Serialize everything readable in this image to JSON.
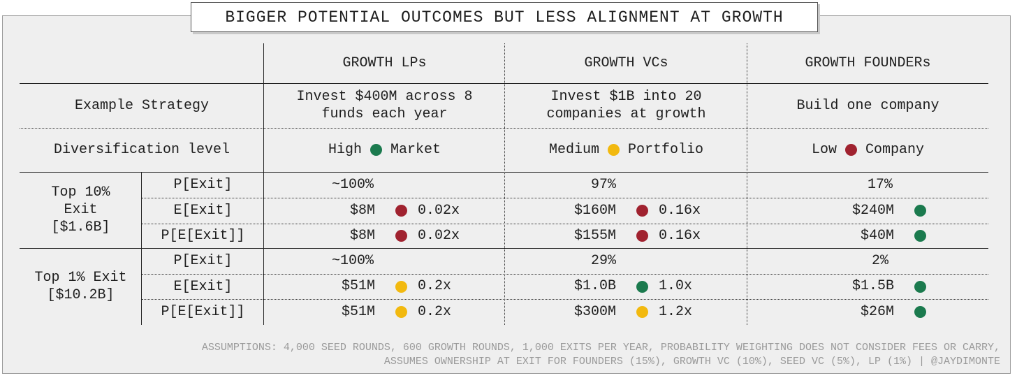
{
  "title": "BIGGER POTENTIAL OUTCOMES BUT LESS ALIGNMENT AT GROWTH",
  "header": [
    "GROWTH LPs",
    "GROWTH VCs",
    "GROWTH FOUNDERs"
  ],
  "strategy": {
    "label": "Example Strategy",
    "cells": [
      "Invest $400M across 8 funds each year",
      "Invest $1B into 20 companies at growth",
      "Build one company"
    ]
  },
  "diversification": {
    "label": "Diversification level",
    "cells": [
      {
        "level": "High",
        "color": "#1b7a4e",
        "scope": "Market"
      },
      {
        "level": "Medium",
        "color": "#f2b90f",
        "scope": "Portfolio"
      },
      {
        "level": "Low",
        "color": "#a0222f",
        "scope": "Company"
      }
    ]
  },
  "groups": [
    {
      "label": "Top 10% Exit [$1.6B]",
      "rows": [
        {
          "metric": "P[Exit]",
          "cells": [
            {
              "value": "~100%"
            },
            {
              "value": "97%"
            },
            {
              "value": "17%"
            }
          ]
        },
        {
          "metric": "E[Exit]",
          "cells": [
            {
              "value": "$8M",
              "color": "#a0222f",
              "multiple": "0.02x"
            },
            {
              "value": "$160M",
              "color": "#a0222f",
              "multiple": "0.16x"
            },
            {
              "value": "$240M",
              "color": "#1b7a4e"
            }
          ]
        },
        {
          "metric": "P[E[Exit]]",
          "cells": [
            {
              "value": "$8M",
              "color": "#a0222f",
              "multiple": "0.02x"
            },
            {
              "value": "$155M",
              "color": "#a0222f",
              "multiple": "0.16x"
            },
            {
              "value": "$40M",
              "color": "#1b7a4e"
            }
          ]
        }
      ]
    },
    {
      "label": "Top 1% Exit [$10.2B]",
      "rows": [
        {
          "metric": "P[Exit]",
          "cells": [
            {
              "value": "~100%"
            },
            {
              "value": "29%"
            },
            {
              "value": "2%"
            }
          ]
        },
        {
          "metric": "E[Exit]",
          "cells": [
            {
              "value": "$51M",
              "color": "#f2b90f",
              "multiple": "0.2x"
            },
            {
              "value": "$1.0B",
              "color": "#1b7a4e",
              "multiple": "1.0x"
            },
            {
              "value": "$1.5B",
              "color": "#1b7a4e"
            }
          ]
        },
        {
          "metric": "P[E[Exit]]",
          "cells": [
            {
              "value": "$51M",
              "color": "#f2b90f",
              "multiple": "0.2x"
            },
            {
              "value": "$300M",
              "color": "#f2b90f",
              "multiple": "1.2x"
            },
            {
              "value": "$26M",
              "color": "#1b7a4e"
            }
          ]
        }
      ]
    }
  ],
  "footnote": [
    "ASSUMPTIONS: 4,000 SEED ROUNDS, 600 GROWTH ROUNDS, 1,000 EXITS PER YEAR, PROBABILITY WEIGHTING DOES NOT CONSIDER FEES OR CARRY,",
    "ASSUMES OWNERSHIP AT EXIT FOR FOUNDERS (15%), GROWTH VC (10%), SEED VC (5%), LP (1%) | @JAYDIMONTE"
  ]
}
